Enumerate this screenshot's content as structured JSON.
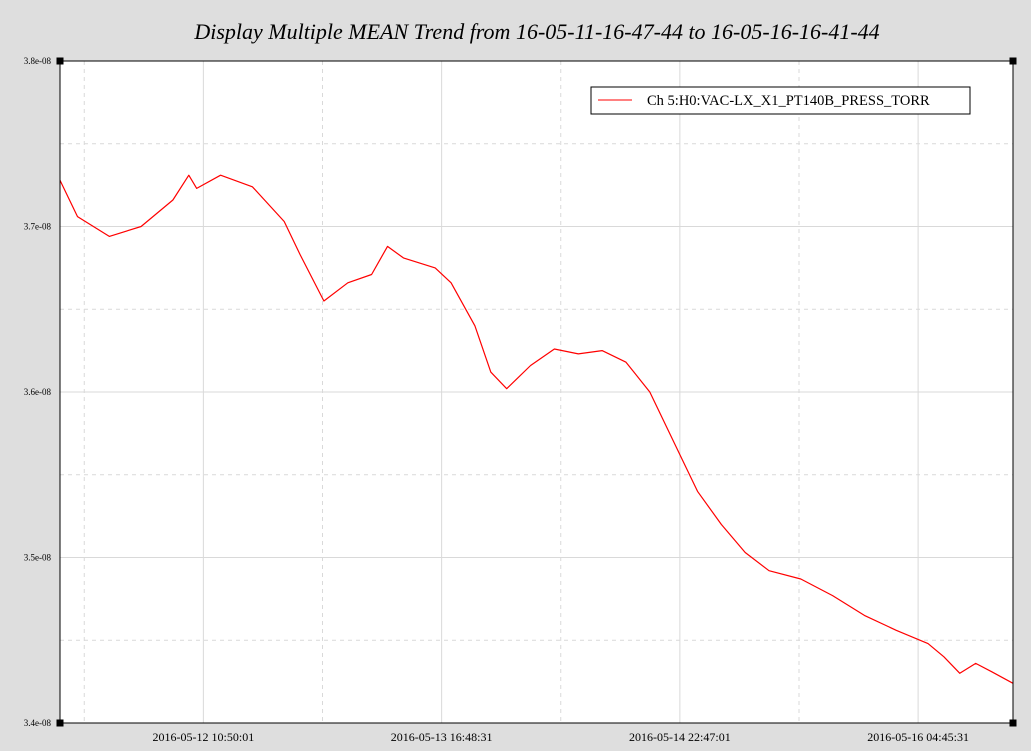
{
  "chart_data": {
    "type": "line",
    "title": "Display Multiple MEAN Trend from 16-05-11-16-47-44 to 16-05-16-16-41-44",
    "xlabel": "",
    "ylabel": "",
    "ylim": [
      3.4e-08,
      3.8e-08
    ],
    "y_tick_labels": [
      "3.4e-08",
      "3.5e-08",
      "3.6e-08",
      "3.7e-08",
      "3.8e-08"
    ],
    "y_ticks": [
      3.4e-08,
      3.5e-08,
      3.6e-08,
      3.7e-08,
      3.8e-08
    ],
    "x_start": "2016-05-11 16:47:44",
    "x_end": "2016-05-16 16:41:44",
    "x_tick_labels": [
      "2016-05-12 10:50:01",
      "2016-05-13 16:48:31",
      "2016-05-14 22:47:01",
      "2016-05-16 04:45:31"
    ],
    "grid": true,
    "legend_position": "top-right",
    "series": [
      {
        "name": "Ch 5:H0:VAC-LX_X1_PT140B_PRESS_TORR",
        "color": "#ff0000",
        "x": [
          "2016-05-11 16:47:44",
          "2016-05-11 19:00:00",
          "2016-05-11 23:00:00",
          "2016-05-12 03:00:00",
          "2016-05-12 07:00:00",
          "2016-05-12 09:00:00",
          "2016-05-12 10:00:00",
          "2016-05-12 13:00:00",
          "2016-05-12 17:00:00",
          "2016-05-12 21:00:00",
          "2016-05-12 23:00:00",
          "2016-05-13 02:00:00",
          "2016-05-13 05:00:00",
          "2016-05-13 08:00:00",
          "2016-05-13 10:00:00",
          "2016-05-13 12:00:00",
          "2016-05-13 14:00:00",
          "2016-05-13 16:00:00",
          "2016-05-13 18:00:00",
          "2016-05-13 21:00:00",
          "2016-05-13 23:00:00",
          "2016-05-14 01:00:00",
          "2016-05-14 04:00:00",
          "2016-05-14 07:00:00",
          "2016-05-14 10:00:00",
          "2016-05-14 13:00:00",
          "2016-05-14 16:00:00",
          "2016-05-14 19:00:00",
          "2016-05-14 21:00:00",
          "2016-05-14 23:00:00",
          "2016-05-15 01:00:00",
          "2016-05-15 04:00:00",
          "2016-05-15 07:00:00",
          "2016-05-15 10:00:00",
          "2016-05-15 14:00:00",
          "2016-05-15 18:00:00",
          "2016-05-15 22:00:00",
          "2016-05-16 02:00:00",
          "2016-05-16 06:00:00",
          "2016-05-16 08:00:00",
          "2016-05-16 10:00:00",
          "2016-05-16 12:00:00",
          "2016-05-16 14:00:00",
          "2016-05-16 16:41:44"
        ],
        "values": [
          3.728e-08,
          3.706e-08,
          3.694e-08,
          3.7e-08,
          3.716e-08,
          3.731e-08,
          3.723e-08,
          3.731e-08,
          3.724e-08,
          3.703e-08,
          3.683e-08,
          3.655e-08,
          3.666e-08,
          3.671e-08,
          3.688e-08,
          3.681e-08,
          3.678e-08,
          3.675e-08,
          3.666e-08,
          3.64e-08,
          3.612e-08,
          3.602e-08,
          3.616e-08,
          3.626e-08,
          3.623e-08,
          3.625e-08,
          3.618e-08,
          3.6e-08,
          3.58e-08,
          3.56e-08,
          3.54e-08,
          3.52e-08,
          3.503e-08,
          3.492e-08,
          3.487e-08,
          3.477e-08,
          3.465e-08,
          3.456e-08,
          3.448e-08,
          3.44e-08,
          3.43e-08,
          3.436e-08,
          3.431e-08,
          3.424e-08
        ]
      }
    ]
  }
}
